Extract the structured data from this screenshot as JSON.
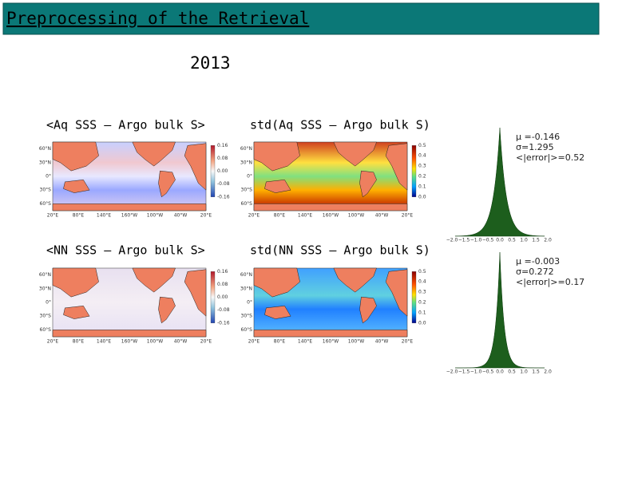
{
  "header": {
    "title": "Preprocessing of the Retrieval"
  },
  "year": "2013",
  "rows": [
    {
      "left_label": "<Aq SSS – Argo bulk S>",
      "right_label": "std(Aq SSS – Argo bulk S)",
      "histogram_stats": [
        "μ =-0.146",
        "σ=1.295",
        "<|error|>=0.52"
      ]
    },
    {
      "left_label": "<NN SSS – Argo bulk S>",
      "right_label": "std(NN SSS – Argo bulk S)",
      "histogram_stats": [
        "μ =-0.003",
        "σ=0.272",
        "<|error|>=0.17"
      ]
    }
  ],
  "map_axes": {
    "lat": [
      "60°N",
      "30°N",
      "0°",
      "30°S",
      "60°S"
    ],
    "lon": [
      "20°E",
      "80°E",
      "140°E",
      "160°W",
      "100°W",
      "40°W",
      "20°E"
    ]
  },
  "diff_colorbar": [
    "0.16",
    "0.08",
    "0.00",
    "-0.08",
    "-0.16"
  ],
  "std_colorbar": [
    "0.5",
    "0.4",
    "0.3",
    "0.2",
    "0.1",
    "0.0"
  ],
  "histogram_ticks": [
    "−2.0",
    "−1.5",
    "−1.0",
    "−0.5",
    "0.0",
    "0.5",
    "1.0",
    "1.5",
    "2.0"
  ]
}
